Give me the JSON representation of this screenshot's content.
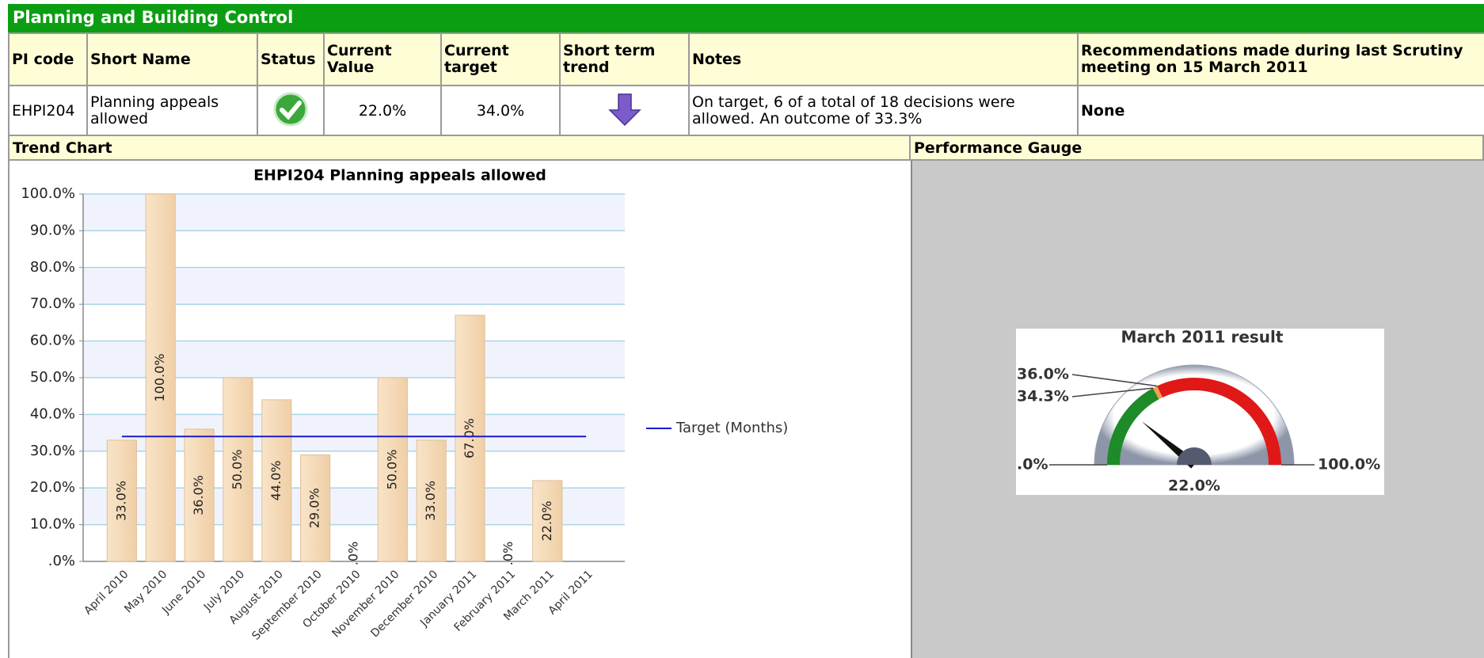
{
  "header": {
    "title": "Planning and Building Control"
  },
  "table": {
    "columns": [
      "PI code",
      "Short Name",
      "Status",
      "Current Value",
      "Current target",
      "Short term trend",
      "Notes",
      "Recommendations made during last Scrutiny meeting on 15 March 2011"
    ],
    "rows": [
      [
        "EHPI204",
        "Planning appeals allowed",
        null,
        "22.0%",
        "34.0%",
        null,
        "On target, 6 of a total of 18 decisions were allowed. An outcome of 33.3%",
        "None"
      ]
    ]
  },
  "sections": [
    "Trend Chart",
    "Performance Gauge"
  ],
  "chart_data": {
    "type": "bar",
    "title": "EHPI204 Planning appeals allowed",
    "categories": [
      "April 2010",
      "May 2010",
      "June 2010",
      "July 2010",
      "August 2010",
      "September 2010",
      "October 2010",
      "November 2010",
      "December 2010",
      "January 2011",
      "February 2011",
      "March 2011",
      "April 2011"
    ],
    "series": [
      {
        "color": "#f5d9b5",
        "values": [
          33,
          100,
          36,
          50,
          44,
          29,
          0,
          50,
          33,
          67,
          0,
          22,
          null
        ],
        "value_labels": [
          "33.0%",
          "100.0%",
          "36.0%",
          "50.0%",
          "44.0%",
          "29.0%",
          ".0%",
          "50.0%",
          "33.0%",
          "67.0%",
          ".0%",
          "22.0%",
          null
        ]
      },
      {
        "name": "Target (Months)",
        "type": "line",
        "color": "#1a1acc",
        "values": [
          34,
          34,
          34,
          34,
          34,
          34,
          34,
          34,
          34,
          34,
          34,
          34,
          34
        ]
      }
    ],
    "ylim": [
      0,
      100
    ],
    "yticks": [
      {
        "value": 0,
        "label": ".0%"
      },
      {
        "value": 10,
        "label": "10.0%"
      },
      {
        "value": 20,
        "label": "20.0%"
      },
      {
        "value": 30,
        "label": "30.0%"
      },
      {
        "value": 40,
        "label": "40.0%"
      },
      {
        "value": 50,
        "label": "50.0%"
      },
      {
        "value": 60,
        "label": "60.0%"
      },
      {
        "value": 70,
        "label": "70.0%"
      },
      {
        "value": 80,
        "label": "80.0%"
      },
      {
        "value": 90,
        "label": "90.0%"
      },
      {
        "value": 100,
        "label": "100.0%"
      }
    ],
    "grid": true,
    "legend": "right"
  },
  "gauge": {
    "title": "March 2011 result",
    "value": 22,
    "value_label": "22.0%",
    "min": {
      "value": 0,
      "label": ".0%"
    },
    "max": {
      "value": 100,
      "label": "100.0%"
    },
    "thresholds": [
      {
        "value": 34.3,
        "label": "34.3%"
      },
      {
        "value": 36,
        "label": "36.0%"
      }
    ],
    "colors": [
      "#1e8a28",
      "#f0a050",
      "#e01818"
    ]
  }
}
